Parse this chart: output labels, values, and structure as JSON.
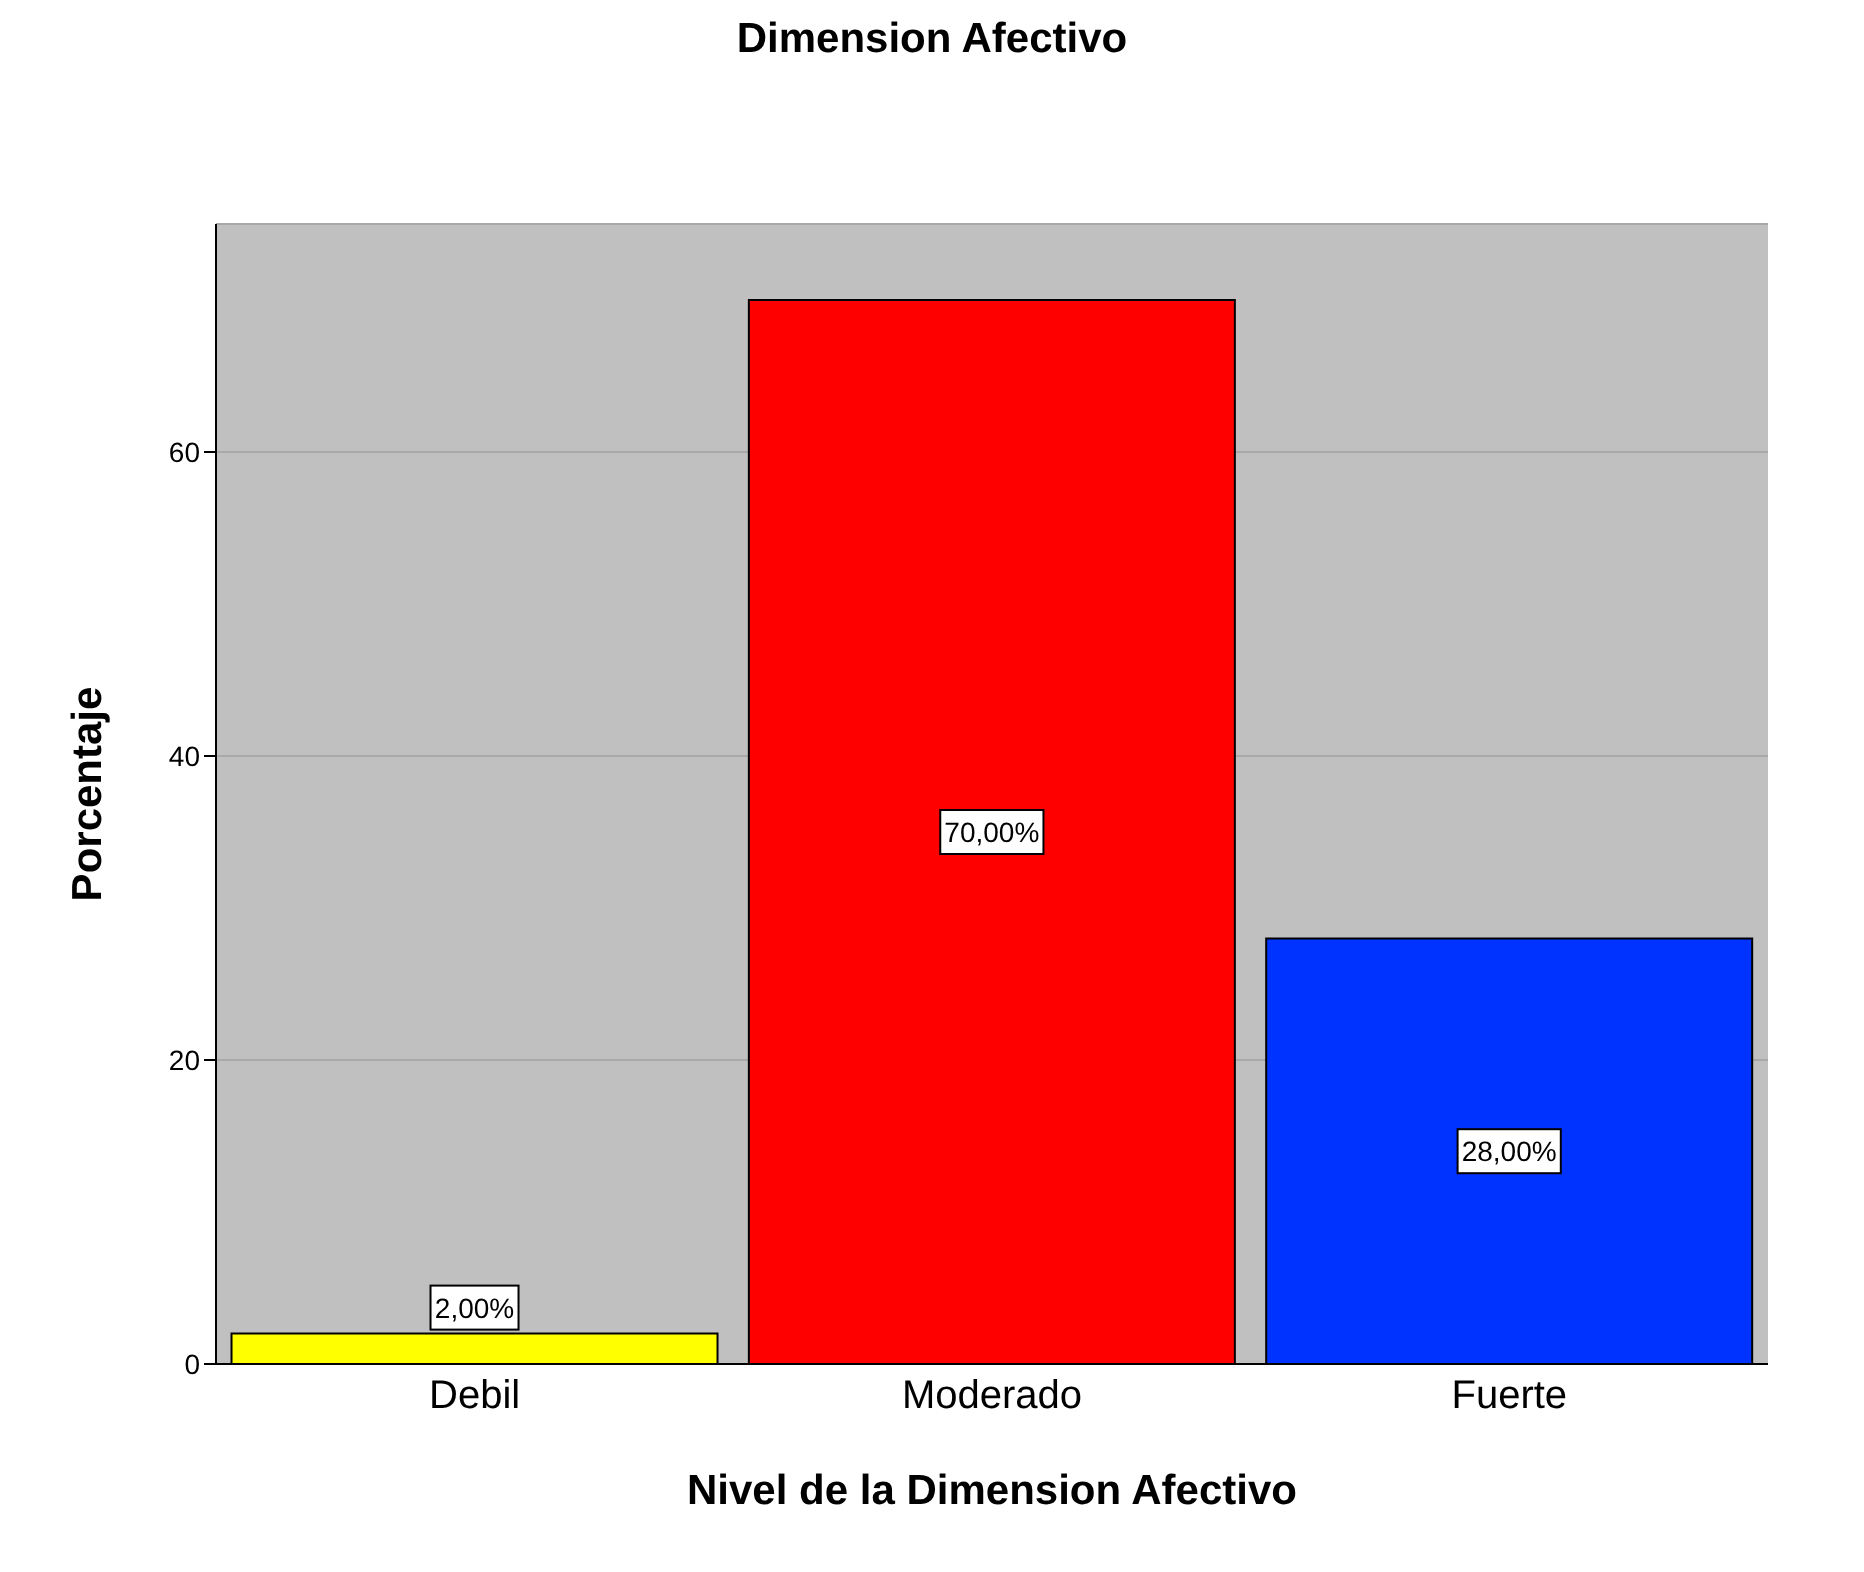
{
  "chart_data": {
    "type": "bar",
    "title": "Dimension Afectivo",
    "xlabel": "Nivel de la Dimension Afectivo",
    "ylabel": "Porcentaje",
    "categories": [
      "Debil",
      "Moderado",
      "Fuerte"
    ],
    "values": [
      2,
      70,
      28
    ],
    "colors": [
      "#ffff00",
      "#ff0000",
      "#0033ff"
    ],
    "value_labels": [
      "2,00%",
      "70,00%",
      "28,00%"
    ],
    "ylim": [
      0,
      75
    ],
    "yticks": [
      0,
      20,
      40,
      60
    ],
    "grid": "y"
  }
}
